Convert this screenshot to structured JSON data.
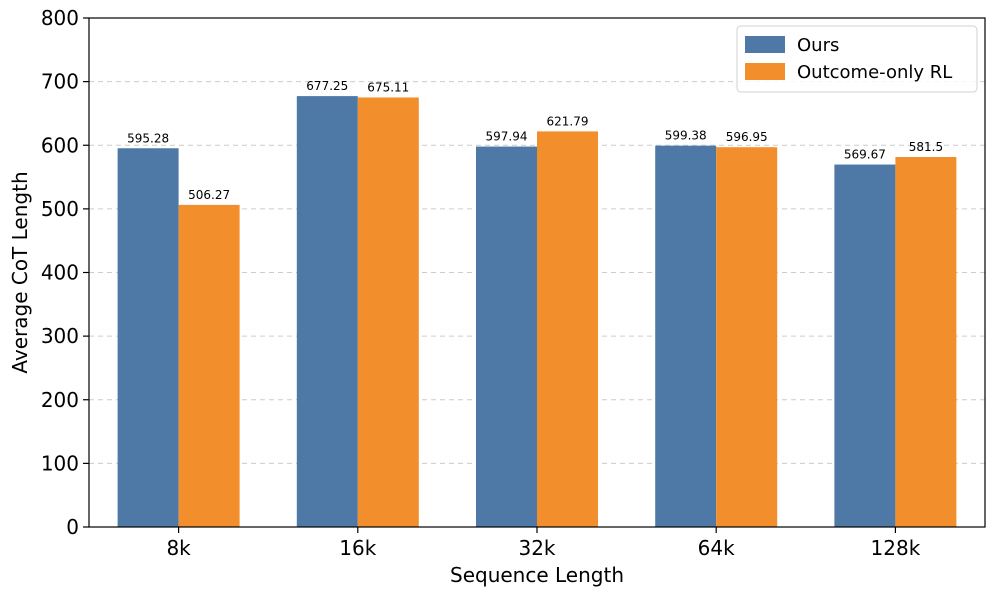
{
  "chart_data": {
    "type": "bar",
    "categories": [
      "8k",
      "16k",
      "32k",
      "64k",
      "128k"
    ],
    "series": [
      {
        "name": "Ours",
        "color": "#4e79a7",
        "values": [
          595.28,
          677.25,
          597.94,
          599.38,
          569.67
        ]
      },
      {
        "name": "Outcome-only RL",
        "color": "#f28e2b",
        "values": [
          506.27,
          675.11,
          621.79,
          596.95,
          581.5
        ]
      }
    ],
    "title": "",
    "xlabel": "Sequence Length",
    "ylabel": "Average CoT Length",
    "ylim": [
      0,
      800
    ],
    "yticks": [
      0,
      100,
      200,
      300,
      400,
      500,
      600,
      700,
      800
    ],
    "grid": true,
    "legend": "top-right"
  }
}
